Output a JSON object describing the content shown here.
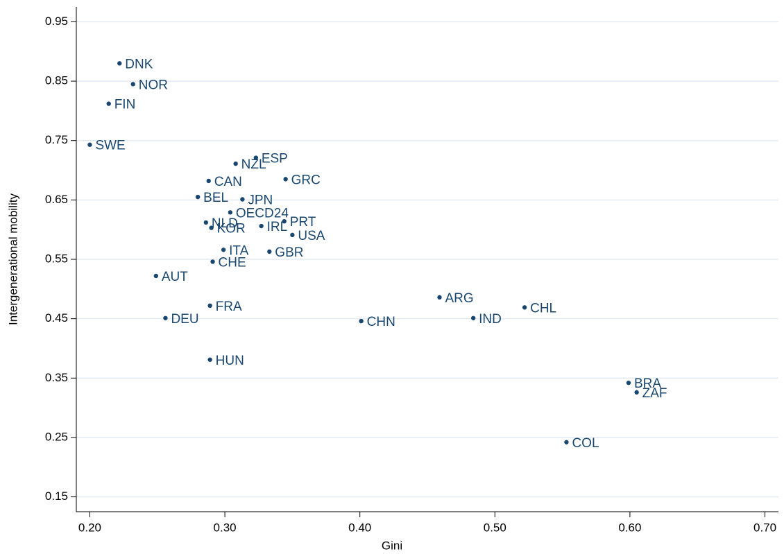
{
  "chart_data": {
    "type": "scatter",
    "x_label": "Gini",
    "y_label": "Intergenerational mobility",
    "color": "#1a476f",
    "grid": true,
    "xlim": [
      0.19,
      0.71
    ],
    "ylim": [
      0.125,
      0.975
    ],
    "xticks": [
      {
        "value": 0.2,
        "label": "0.20"
      },
      {
        "value": 0.3,
        "label": "0.30"
      },
      {
        "value": 0.4,
        "label": "0.40"
      },
      {
        "value": 0.5,
        "label": "0.50"
      },
      {
        "value": 0.6,
        "label": "0.60"
      },
      {
        "value": 0.7,
        "label": "0.70"
      }
    ],
    "yticks": [
      0.95,
      0.85,
      0.75,
      0.65,
      0.55,
      0.45,
      0.35,
      0.25,
      0.15
    ],
    "labels": [
      "DNK",
      "NOR",
      "FIN",
      "SWE",
      "ESP",
      "NZL",
      "GRC",
      "CAN",
      "BEL",
      "JPN",
      "OECD24",
      "NLD",
      "PRT",
      "IRL",
      "KOR",
      "USA",
      "ITA",
      "GBR",
      "CHE",
      "AUT",
      "FRA",
      "DEU",
      "HUN",
      "CHN",
      "ARG",
      "IND",
      "CHL",
      "BRA",
      "ZAF",
      "COL"
    ],
    "x": [
      0.222,
      0.232,
      0.214,
      0.2,
      0.323,
      0.308,
      0.345,
      0.288,
      0.28,
      0.313,
      0.304,
      0.286,
      0.344,
      0.327,
      0.29,
      0.35,
      0.299,
      0.333,
      0.291,
      0.249,
      0.289,
      0.256,
      0.289,
      0.401,
      0.459,
      0.484,
      0.522,
      0.599,
      0.605,
      0.553
    ],
    "y": [
      0.88,
      0.845,
      0.812,
      0.743,
      0.721,
      0.711,
      0.685,
      0.682,
      0.655,
      0.651,
      0.629,
      0.612,
      0.614,
      0.606,
      0.603,
      0.591,
      0.566,
      0.563,
      0.546,
      0.522,
      0.472,
      0.451,
      0.381,
      0.446,
      0.486,
      0.451,
      0.469,
      0.342,
      0.326,
      0.242
    ]
  }
}
